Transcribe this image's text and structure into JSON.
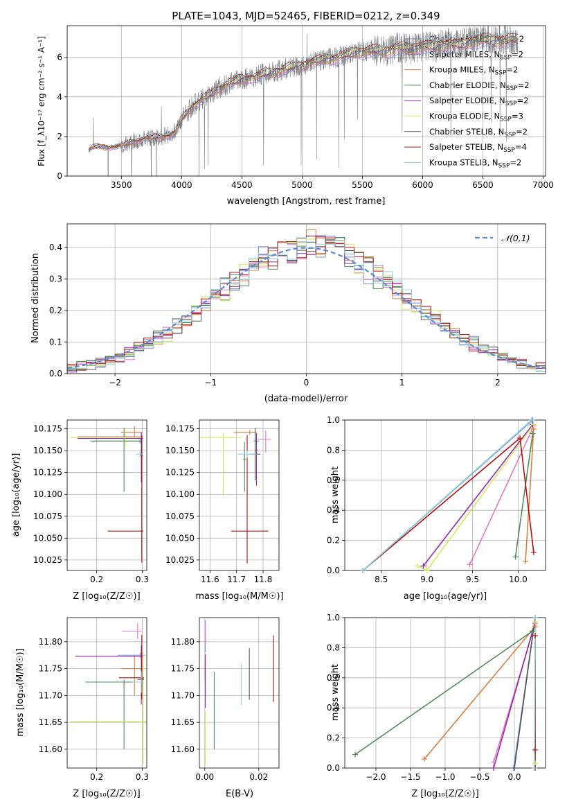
{
  "colors": {
    "Chabrier MILES": "#7b8fd6",
    "Salpeter MILES": "#e377c2",
    "Kroupa MILES": "#d97e3b",
    "Chabrier ELODIE": "#4f8a58",
    "Salpeter ELODIE": "#8e2aa8",
    "Kroupa ELODIE": "#d4ea5c",
    "Chabrier STELIB": "#555555",
    "Salpeter STELIB": "#b30f0f",
    "Kroupa STELIB": "#8fd3e0",
    "data": "#808080",
    "normal": "#5b8bd0"
  },
  "chart_data": [
    {
      "id": "spectrum",
      "type": "line",
      "title": "PLATE=1043, MJD=52465, FIBERID=0212, z=0.349",
      "xlabel": "wavelength [Angstrom, rest frame]",
      "ylabel": "Flux [f_λ10⁻¹⁷ erg cm⁻² s⁻¹ A⁻¹]",
      "xlim": [
        3050,
        7020
      ],
      "ylim": [
        0,
        7.6
      ],
      "xticks": [
        3500,
        4000,
        4500,
        5000,
        5500,
        6000,
        6500,
        7000
      ],
      "yticks": [
        0,
        2,
        4,
        6
      ],
      "grid": true,
      "legend_position": "upper-right",
      "legend": [
        {
          "label": "Chabrier MILES, N_SSP=2",
          "key": "Chabrier MILES"
        },
        {
          "label": "Salpeter MILES, N_SSP=2",
          "key": "Salpeter MILES"
        },
        {
          "label": "Kroupa MILES, N_SSP=2",
          "key": "Kroupa MILES"
        },
        {
          "label": "Chabrier ELODIE, N_SSP=2",
          "key": "Chabrier ELODIE"
        },
        {
          "label": "Salpeter ELODIE, N_SSP=2",
          "key": "Salpeter ELODIE"
        },
        {
          "label": "Kroupa ELODIE, N_SSP=3",
          "key": "Kroupa ELODIE"
        },
        {
          "label": "Chabrier STELIB, N_SSP=2",
          "key": "Chabrier STELIB"
        },
        {
          "label": "Salpeter STELIB, N_SSP=4",
          "key": "Salpeter STELIB"
        },
        {
          "label": "Kroupa STELIB, N_SSP=2",
          "key": "Kroupa STELIB"
        }
      ],
      "continuum": {
        "x": [
          3230,
          3260,
          3300,
          3400,
          3500,
          3600,
          3700,
          3800,
          3900,
          3950,
          4000,
          4100,
          4200,
          4300,
          4400,
          4500,
          4600,
          4700,
          4800,
          4900,
          5000,
          5100,
          5200,
          5300,
          5400,
          5500,
          5600,
          5700,
          5800,
          5900,
          6000,
          6100,
          6200,
          6300,
          6400,
          6500,
          6600,
          6700,
          6790
        ],
        "y": [
          1.3,
          1.45,
          1.5,
          1.45,
          1.55,
          1.75,
          1.9,
          2.0,
          2.05,
          2.3,
          2.9,
          3.6,
          4.0,
          4.4,
          4.7,
          4.9,
          5.0,
          5.2,
          5.3,
          5.5,
          5.6,
          5.8,
          5.9,
          6.0,
          6.2,
          6.3,
          6.35,
          6.3,
          6.5,
          6.4,
          6.6,
          6.5,
          6.7,
          6.6,
          6.8,
          6.9,
          6.8,
          6.9,
          6.9
        ]
      }
    },
    {
      "id": "residuals",
      "type": "histogram",
      "xlabel": "(data-model)/error",
      "ylabel": "Normed distribution",
      "xlim": [
        -2.5,
        2.5
      ],
      "ylim": [
        0,
        0.475
      ],
      "xticks": [
        -2,
        -1,
        0,
        1,
        2
      ],
      "yticks": [
        0.0,
        0.1,
        0.2,
        0.3,
        0.4
      ],
      "grid": true,
      "legend_position": "upper-right",
      "legend": [
        {
          "label": "𝒩(0,1)",
          "key": "normal"
        }
      ],
      "bin_width": 0.1,
      "bin_start": -2.5,
      "curve": {
        "mean": 0,
        "sigma": 1
      }
    },
    {
      "id": "age-vs-z",
      "type": "errorbar",
      "xlabel": "Z [log₁₀(Z/Z☉)]",
      "ylabel": "age  [log₁₀(age/yr)]",
      "xlim": [
        0.135,
        0.31
      ],
      "ylim": [
        10.013,
        10.185
      ],
      "xticks": [
        0.2,
        0.3
      ],
      "yticks": [
        10.025,
        10.05,
        10.075,
        10.1,
        10.125,
        10.15,
        10.175
      ],
      "grid": true,
      "points": [
        {
          "key": "Chabrier MILES",
          "x": 0.295,
          "xerr_lo": 0.11,
          "xerr_hi": 0.005,
          "y": 10.161,
          "yerr_lo": 0.003,
          "yerr_hi": 0.003
        },
        {
          "key": "Salpeter MILES",
          "x": 0.298,
          "xerr_lo": 0.14,
          "xerr_hi": 0.003,
          "y": 10.166,
          "yerr_lo": 0.005,
          "yerr_hi": 0.005
        },
        {
          "key": "Kroupa MILES",
          "x": 0.283,
          "xerr_lo": 0.03,
          "xerr_hi": 0.018,
          "y": 10.171,
          "yerr_lo": 0.005,
          "yerr_hi": 0.007
        },
        {
          "key": "Chabrier ELODIE",
          "x": 0.26,
          "xerr_lo": 0.07,
          "xerr_hi": 0.04,
          "y": 10.161,
          "yerr_lo": 0.058,
          "yerr_hi": 0.015
        },
        {
          "key": "Salpeter ELODIE",
          "x": 0.298,
          "xerr_lo": 0.14,
          "xerr_hi": 0.004,
          "y": 10.164,
          "yerr_lo": 0.05,
          "yerr_hi": 0.007
        },
        {
          "key": "Kroupa ELODIE",
          "x": 0.262,
          "xerr_lo": 0.12,
          "xerr_hi": 0.04,
          "y": 10.165,
          "yerr_lo": 0.01,
          "yerr_hi": 0.01
        },
        {
          "key": "Chabrier STELIB",
          "x": 0.299,
          "xerr_lo": 0.004,
          "xerr_hi": 0.003,
          "y": 10.145,
          "yerr_lo": 0.003,
          "yerr_hi": 0.003
        },
        {
          "key": "Salpeter STELIB",
          "x": 0.299,
          "xerr_lo": 0.075,
          "xerr_hi": 0.003,
          "y": 10.058,
          "yerr_lo": 0.036,
          "yerr_hi": 0.11
        },
        {
          "key": "Kroupa STELIB",
          "x": 0.295,
          "xerr_lo": 0.01,
          "xerr_hi": 0.006,
          "y": 10.146,
          "yerr_lo": 0.003,
          "yerr_hi": 0.003
        }
      ]
    },
    {
      "id": "age-vs-mass",
      "type": "errorbar",
      "xlabel": "mass [log₁₀(M/M☉)]",
      "ylabel": "",
      "xlim": [
        11.56,
        11.86
      ],
      "ylim": [
        10.013,
        10.185
      ],
      "xticks": [
        11.6,
        11.7,
        11.8
      ],
      "yticks": [
        10.025,
        10.05,
        10.075,
        10.1,
        10.125,
        10.15,
        10.175
      ],
      "grid": true,
      "points": [
        {
          "key": "Chabrier MILES",
          "x": 11.775,
          "xerr_lo": 0.01,
          "xerr_hi": 0.01,
          "y": 10.161,
          "yerr_lo": 0.003,
          "yerr_hi": 0.003
        },
        {
          "key": "Salpeter MILES",
          "x": 11.81,
          "xerr_lo": 0.03,
          "xerr_hi": 0.02,
          "y": 10.163,
          "yerr_lo": 0.015,
          "yerr_hi": 0.01
        },
        {
          "key": "Kroupa MILES",
          "x": 11.75,
          "xerr_lo": 0.06,
          "xerr_hi": 0.025,
          "y": 10.171,
          "yerr_lo": 0.003,
          "yerr_hi": 0.003
        },
        {
          "key": "Chabrier ELODIE",
          "x": 11.73,
          "xerr_lo": 0.005,
          "xerr_hi": 0.005,
          "y": 10.14,
          "yerr_lo": 0.037,
          "yerr_hi": 0.02
        },
        {
          "key": "Salpeter ELODIE",
          "x": 11.775,
          "xerr_lo": 0.005,
          "xerr_hi": 0.005,
          "y": 10.15,
          "yerr_lo": 0.04,
          "yerr_hi": 0.02
        },
        {
          "key": "Kroupa ELODIE",
          "x": 11.65,
          "xerr_lo": 0.1,
          "xerr_hi": 0.07,
          "y": 10.165,
          "yerr_lo": 0.067,
          "yerr_hi": 0.005
        },
        {
          "key": "Chabrier STELIB",
          "x": 11.77,
          "xerr_lo": 0.02,
          "xerr_hi": 0.02,
          "y": 10.146,
          "yerr_lo": 0.03,
          "yerr_hi": 0.03
        },
        {
          "key": "Salpeter STELIB",
          "x": 11.74,
          "xerr_lo": 0.06,
          "xerr_hi": 0.08,
          "y": 10.058,
          "yerr_lo": 0.037,
          "yerr_hi": 0.11
        },
        {
          "key": "Kroupa STELIB",
          "x": 11.74,
          "xerr_lo": 0.035,
          "xerr_hi": 0.035,
          "y": 10.146,
          "yerr_lo": 0.004,
          "yerr_hi": 0.004
        }
      ]
    },
    {
      "id": "mass-weight-vs-age",
      "type": "line",
      "xlabel": "age  [log₁₀(age/yr)]",
      "ylabel": "mass weight",
      "xlim": [
        8.1,
        10.3
      ],
      "ylim": [
        0,
        1.0
      ],
      "xticks": [
        8.5,
        9.0,
        9.5,
        10.0
      ],
      "yticks": [
        0.0,
        0.2,
        0.4,
        0.6,
        0.8,
        1.0
      ],
      "grid": true,
      "series": [
        {
          "key": "Chabrier MILES",
          "x": [
            8.3,
            10.16
          ],
          "y": [
            0.0,
            1.0
          ]
        },
        {
          "key": "Salpeter MILES",
          "x": [
            9.47,
            10.17
          ],
          "y": [
            0.04,
            0.96
          ]
        },
        {
          "key": "Kroupa MILES",
          "x": [
            10.08,
            10.17
          ],
          "y": [
            0.06,
            0.94
          ]
        },
        {
          "key": "Chabrier ELODIE",
          "x": [
            9.97,
            10.16
          ],
          "y": [
            0.09,
            0.91
          ]
        },
        {
          "key": "Salpeter ELODIE",
          "x": [
            8.96,
            10.16
          ],
          "y": [
            0.03,
            0.97
          ]
        },
        {
          "key": "Kroupa ELODIE",
          "x": [
            8.9,
            9.0,
            10.17
          ],
          "y": [
            0.03,
            0.0,
            0.97
          ]
        },
        {
          "key": "Chabrier STELIB",
          "x": [
            8.3,
            10.15
          ],
          "y": [
            0.0,
            1.0
          ]
        },
        {
          "key": "Salpeter STELIB",
          "x": [
            8.3,
            10.02,
            10.17
          ],
          "y": [
            0.0,
            0.88,
            0.12
          ]
        },
        {
          "key": "Kroupa STELIB",
          "x": [
            8.3,
            10.15
          ],
          "y": [
            0.0,
            1.0
          ]
        }
      ]
    },
    {
      "id": "mass-vs-z",
      "type": "errorbar",
      "xlabel": "Z [log₁₀(Z/Z☉)]",
      "ylabel": "mass [log₁₀(M/M☉)]",
      "xlim": [
        0.135,
        0.31
      ],
      "ylim": [
        11.565,
        11.845
      ],
      "xticks": [
        0.2,
        0.3
      ],
      "yticks": [
        11.6,
        11.65,
        11.7,
        11.75,
        11.8
      ],
      "grid": true,
      "points": [
        {
          "key": "Chabrier MILES",
          "x": 0.296,
          "xerr_lo": 0.05,
          "xerr_hi": 0.01,
          "y": 11.775,
          "yerr_lo": 0.005,
          "yerr_hi": 0.005
        },
        {
          "key": "Salpeter MILES",
          "x": 0.29,
          "xerr_lo": 0.035,
          "xerr_hi": 0.01,
          "y": 11.82,
          "yerr_lo": 0.015,
          "yerr_hi": 0.015
        },
        {
          "key": "Kroupa MILES",
          "x": 0.283,
          "xerr_lo": 0.03,
          "xerr_hi": 0.015,
          "y": 11.75,
          "yerr_lo": 0.05,
          "yerr_hi": 0.025
        },
        {
          "key": "Chabrier ELODIE",
          "x": 0.26,
          "xerr_lo": 0.085,
          "xerr_hi": 0.04,
          "y": 11.725,
          "yerr_lo": 0.125,
          "yerr_hi": 0.005
        },
        {
          "key": "Salpeter ELODIE",
          "x": 0.298,
          "xerr_lo": 0.145,
          "xerr_hi": 0.004,
          "y": 11.773,
          "yerr_lo": 0.09,
          "yerr_hi": 0.02
        },
        {
          "key": "Kroupa ELODIE",
          "x": 0.302,
          "xerr_lo": 0.16,
          "xerr_hi": 0.01,
          "y": 11.652,
          "yerr_lo": 0.08,
          "yerr_hi": 0.13
        },
        {
          "key": "Chabrier STELIB",
          "x": 0.299,
          "xerr_lo": 0.01,
          "xerr_hi": 0.005,
          "y": 11.73,
          "yerr_lo": 0.02,
          "yerr_hi": 0.02
        },
        {
          "key": "Salpeter STELIB",
          "x": 0.299,
          "xerr_lo": 0.05,
          "xerr_hi": 0.005,
          "y": 11.733,
          "yerr_lo": 0.04,
          "yerr_hi": 0.08
        },
        {
          "key": "Kroupa STELIB",
          "x": 0.298,
          "xerr_lo": 0.02,
          "xerr_hi": 0.005,
          "y": 11.725,
          "yerr_lo": 0.02,
          "yerr_hi": 0.02
        }
      ]
    },
    {
      "id": "mass-vs-ebv",
      "type": "errorbar",
      "xlabel": "E(B-V)",
      "ylabel": "",
      "xlim": [
        -0.002,
        0.0275
      ],
      "ylim": [
        11.565,
        11.845
      ],
      "xticks": [
        0.0,
        0.02
      ],
      "yticks": [
        11.6,
        11.65,
        11.7,
        11.75,
        11.8
      ],
      "grid": true,
      "points": [
        {
          "key": "Chabrier MILES",
          "x": 0.0002,
          "xerr_lo": 0,
          "xerr_hi": 0,
          "y": 11.81,
          "yerr_lo": 0.03,
          "yerr_hi": 0.03
        },
        {
          "key": "Salpeter MILES",
          "x": 0.0002,
          "xerr_lo": 0,
          "xerr_hi": 0,
          "y": 11.815,
          "yerr_lo": 0.02,
          "yerr_hi": 0.02
        },
        {
          "key": "Kroupa MILES",
          "x": 0.0001,
          "xerr_lo": 0,
          "xerr_hi": 0,
          "y": 11.75,
          "yerr_lo": 0.02,
          "yerr_hi": 0.02
        },
        {
          "key": "Chabrier ELODIE",
          "x": 0.0035,
          "xerr_lo": 0,
          "xerr_hi": 0,
          "y": 11.672,
          "yerr_lo": 0.072,
          "yerr_hi": 0.072
        },
        {
          "key": "Salpeter ELODIE",
          "x": 0.0002,
          "xerr_lo": 0,
          "xerr_hi": 0,
          "y": 11.727,
          "yerr_lo": 0.05,
          "yerr_hi": 0.05
        },
        {
          "key": "Kroupa ELODIE",
          "x": 0.0002,
          "xerr_lo": 0,
          "xerr_hi": 0,
          "y": 11.62,
          "yerr_lo": 0.05,
          "yerr_hi": 0.05
        },
        {
          "key": "Chabrier STELIB",
          "x": 0.0165,
          "xerr_lo": 0,
          "xerr_hi": 0,
          "y": 11.74,
          "yerr_lo": 0.048,
          "yerr_hi": 0.048
        },
        {
          "key": "Salpeter STELIB",
          "x": 0.0255,
          "xerr_lo": 0,
          "xerr_hi": 0,
          "y": 11.75,
          "yerr_lo": 0.062,
          "yerr_hi": 0.062
        },
        {
          "key": "Kroupa STELIB",
          "x": 0.0135,
          "xerr_lo": 0,
          "xerr_hi": 0,
          "y": 11.72,
          "yerr_lo": 0.038,
          "yerr_hi": 0.038
        }
      ]
    },
    {
      "id": "mass-weight-vs-z",
      "type": "line",
      "xlabel": "Z [log₁₀(Z/Z☉)]",
      "ylabel": "mass weight",
      "xlim": [
        -2.45,
        0.45
      ],
      "ylim": [
        0,
        1.0
      ],
      "xticks": [
        -2.0,
        -1.5,
        -1.0,
        -0.5,
        0.0
      ],
      "yticks": [
        0.0,
        0.2,
        0.4,
        0.6,
        0.8,
        1.0
      ],
      "grid": true,
      "series": [
        {
          "key": "Chabrier MILES",
          "x": [
            -0.01,
            0.3
          ],
          "y": [
            0.0,
            1.0
          ]
        },
        {
          "key": "Salpeter MILES",
          "x": [
            -0.3,
            0.3
          ],
          "y": [
            0.04,
            0.96
          ]
        },
        {
          "key": "Kroupa MILES",
          "x": [
            -1.3,
            0.3
          ],
          "y": [
            0.06,
            0.94
          ]
        },
        {
          "key": "Chabrier ELODIE",
          "x": [
            -2.3,
            0.26
          ],
          "y": [
            0.09,
            0.91
          ]
        },
        {
          "key": "Salpeter ELODIE",
          "x": [
            -0.3,
            0.3
          ],
          "y": [
            0.0,
            0.97
          ]
        },
        {
          "key": "Kroupa ELODIE",
          "x": [
            0.3,
            0.3
          ],
          "y": [
            0.03,
            0.97
          ]
        },
        {
          "key": "Chabrier STELIB",
          "x": [
            0.0,
            0.3
          ],
          "y": [
            0.0,
            1.0
          ]
        },
        {
          "key": "Salpeter STELIB",
          "x": [
            0.3,
            0.3,
            0.3
          ],
          "y": [
            0.0,
            0.88,
            0.12
          ]
        },
        {
          "key": "Kroupa STELIB",
          "x": [
            0.29,
            0.3
          ],
          "y": [
            0.0,
            1.0
          ]
        }
      ]
    }
  ]
}
